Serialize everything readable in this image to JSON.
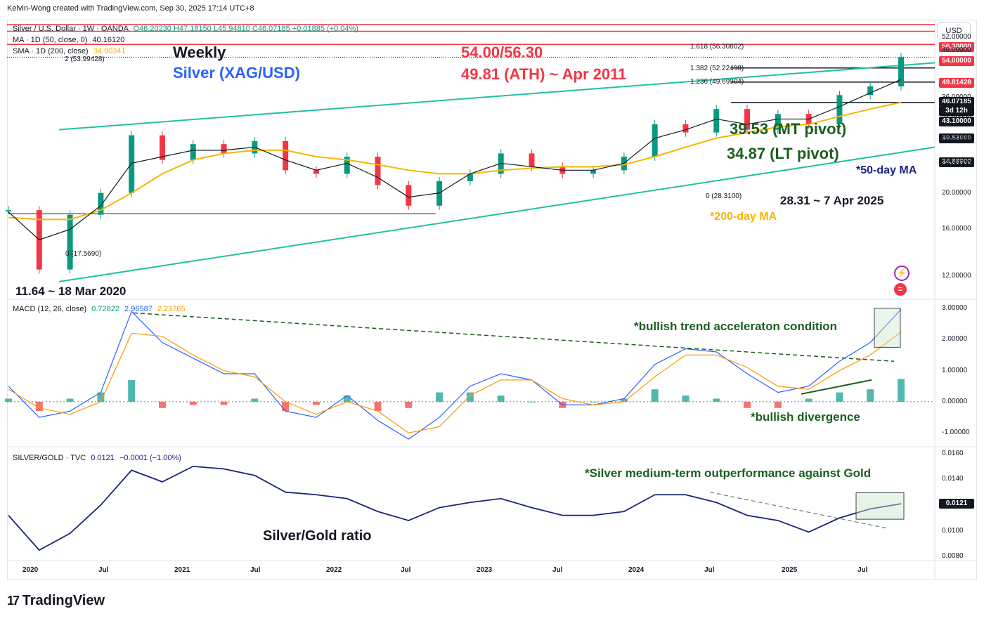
{
  "credit": "Kelvin-Wong created with TradingView.com, Sep 30, 2025 17:14 UTC+8",
  "currency_badge": "USD",
  "legend": {
    "symbol": "Silver / U.S. Dollar · 1W · OANDA",
    "ohlc": "O46.20230 H47.18150 L45.94810 C46.07185 +0.01885 (+0.04%)",
    "ma_label": "MA · 1D (50, close, 0)",
    "ma_value": "40.16120",
    "sma_label": "SMA · 1D (200, close)",
    "sma_value": "34.90341",
    "fib_2": "2 (53.99428)"
  },
  "annotations": {
    "weekly": "Weekly",
    "instrument": "Silver (XAG/USD)",
    "resistance": "54.00/56.30",
    "ath": "49.81 (ATH) ~ Apr 2011",
    "mt_pivot": "39.53 (MT pivot)",
    "lt_pivot": "34.87 (LT pivot)",
    "ma50": "*50-day MA",
    "ma200": "*200-day MA",
    "low_2025": "28.31 ~ 7 Apr 2025",
    "low_2020": "11.64 ~ 18 Mar 2020",
    "fib_0_low": "0 (17.5690)",
    "fib_0_2025": "0 (28.3100)",
    "fib_1618": "1.618 (56.30802)",
    "fib_1382": "1.382 (52.22498)",
    "fib_1236": "1.236 (49.69904)",
    "macd_accel": "*bullish trend acceleraton condition",
    "macd_div": "*bullish divergence",
    "ratio_note": "*Silver medium-term outperformance against Gold",
    "ratio_title": "Silver/Gold ratio"
  },
  "price_tags": [
    {
      "label": "56.30000",
      "color": "#f23645"
    },
    {
      "label": "54.00000",
      "color": "#f23645"
    },
    {
      "label": "49.81428",
      "color": "#f23645"
    },
    {
      "label": "46.07185",
      "color": "#131722"
    },
    {
      "label": "3d 12h",
      "color": "#131722"
    },
    {
      "label": "43.10000",
      "color": "#131722"
    },
    {
      "label": "39.53000",
      "color": "#131722"
    },
    {
      "label": "34.86900",
      "color": "#131722"
    }
  ],
  "price_axis": [
    "52.00000",
    "48.00000",
    "36.00000",
    "32.00000",
    "28.00000",
    "24.00000",
    "20.00000",
    "16.00000",
    "12.00000"
  ],
  "macd_legend": {
    "label": "MACD (12, 26, close)",
    "hist": "0.72822",
    "macd": "2.96587",
    "signal": "2.23765"
  },
  "macd_axis": [
    "3.00000",
    "2.00000",
    "1.00000",
    "0.00000",
    "-1.00000"
  ],
  "ratio_legend": {
    "label": "SILVER/GOLD · TVC",
    "value": "0.0121",
    "change": "−0.0001 (−1.00%)"
  },
  "ratio_axis": [
    "0.0160",
    "0.0140",
    "0.0121",
    "0.0100",
    "0.0080"
  ],
  "time_axis": [
    "2020",
    "Jul",
    "2021",
    "Jul",
    "2022",
    "Jul",
    "2023",
    "Jul",
    "2024",
    "Jul",
    "2025",
    "Jul"
  ],
  "brand": "TradingView",
  "colors": {
    "up": "#089981",
    "down": "#f23645",
    "ma50": "#131722",
    "ma200": "#f7b500",
    "channel": "#22c1a0",
    "macd": "#2962ff",
    "signal": "#ff9800",
    "annotation_green": "#1b5e20"
  },
  "chart_data": [
    {
      "type": "candlestick",
      "title": "Silver / U.S. Dollar · 1W · OANDA",
      "ylim": [
        10.5,
        58
      ],
      "x": [
        "2020-01",
        "2020-03",
        "2020-05",
        "2020-07",
        "2020-08",
        "2020-10",
        "2021-01",
        "2021-03",
        "2021-06",
        "2021-09",
        "2021-12",
        "2022-03",
        "2022-06",
        "2022-09",
        "2022-11",
        "2023-02",
        "2023-05",
        "2023-07",
        "2023-10",
        "2024-01",
        "2024-03",
        "2024-05",
        "2024-07",
        "2024-10",
        "2024-12",
        "2025-02",
        "2025-04",
        "2025-06",
        "2025-08",
        "2025-09"
      ],
      "close": [
        18.0,
        12.5,
        17.5,
        20.0,
        28.5,
        24.5,
        27.0,
        25.5,
        27.5,
        23.0,
        22.5,
        25.0,
        21.0,
        18.5,
        21.5,
        22.5,
        25.5,
        23.5,
        22.5,
        23.0,
        25.0,
        30.5,
        29.0,
        33.5,
        29.5,
        32.5,
        30.5,
        36.5,
        38.5,
        46.07
      ],
      "ma50": [
        17.8,
        15.0,
        16.0,
        18.5,
        24.0,
        25.0,
        26.0,
        26.0,
        26.5,
        24.5,
        23.0,
        24.0,
        22.0,
        19.5,
        20.0,
        22.5,
        24.0,
        23.5,
        23.0,
        23.0,
        24.0,
        28.0,
        29.5,
        31.5,
        30.5,
        31.5,
        31.5,
        34.0,
        37.0,
        40.16
      ],
      "sma200": [
        17.2,
        17.0,
        17.0,
        18.0,
        20.0,
        22.5,
        24.5,
        25.5,
        26.0,
        26.0,
        25.0,
        24.5,
        23.8,
        23.0,
        22.5,
        22.5,
        23.0,
        23.3,
        23.5,
        23.5,
        23.8,
        25.0,
        26.5,
        28.0,
        29.0,
        30.0,
        30.5,
        32.0,
        33.5,
        34.9
      ],
      "levels": [
        56.3,
        54.0,
        49.81428,
        43.1,
        39.53,
        34.869
      ]
    },
    {
      "type": "line",
      "title": "MACD (12, 26, close)",
      "ylim": [
        -1.4,
        3.2
      ],
      "x": [
        "2020-01",
        "2020-03",
        "2020-05",
        "2020-07",
        "2020-08",
        "2020-10",
        "2021-01",
        "2021-03",
        "2021-06",
        "2021-09",
        "2021-12",
        "2022-03",
        "2022-06",
        "2022-09",
        "2022-11",
        "2023-02",
        "2023-05",
        "2023-07",
        "2023-10",
        "2024-01",
        "2024-03",
        "2024-05",
        "2024-07",
        "2024-10",
        "2024-12",
        "2025-02",
        "2025-04",
        "2025-06",
        "2025-08",
        "2025-09"
      ],
      "series": [
        {
          "name": "MACD",
          "values": [
            0.5,
            -0.5,
            -0.3,
            0.3,
            2.9,
            1.9,
            1.4,
            0.9,
            0.9,
            -0.3,
            -0.5,
            0.2,
            -0.6,
            -1.2,
            -0.5,
            0.5,
            0.9,
            0.7,
            -0.1,
            -0.1,
            0.1,
            1.2,
            1.7,
            1.6,
            0.9,
            0.3,
            0.5,
            1.3,
            1.9,
            2.97
          ]
        },
        {
          "name": "Signal",
          "values": [
            0.4,
            -0.2,
            -0.4,
            0.0,
            2.2,
            2.1,
            1.5,
            1.0,
            0.8,
            0.0,
            -0.4,
            0.0,
            -0.3,
            -1.0,
            -0.8,
            0.2,
            0.7,
            0.7,
            0.1,
            -0.1,
            0.0,
            0.8,
            1.5,
            1.5,
            1.1,
            0.5,
            0.4,
            1.0,
            1.5,
            2.24
          ]
        },
        {
          "name": "Histogram",
          "values": [
            0.1,
            -0.3,
            0.1,
            0.3,
            0.7,
            -0.2,
            -0.1,
            -0.1,
            0.1,
            -0.3,
            -0.1,
            0.2,
            -0.3,
            -0.2,
            0.3,
            0.3,
            0.2,
            0.0,
            -0.2,
            0.0,
            0.1,
            0.4,
            0.2,
            0.1,
            -0.2,
            -0.2,
            0.1,
            0.3,
            0.4,
            0.73
          ]
        }
      ]
    },
    {
      "type": "line",
      "title": "SILVER/GOLD · TVC",
      "ylim": [
        0.0078,
        0.0163
      ],
      "x": [
        "2020-01",
        "2020-03",
        "2020-05",
        "2020-07",
        "2020-08",
        "2020-10",
        "2021-01",
        "2021-03",
        "2021-06",
        "2021-09",
        "2021-12",
        "2022-03",
        "2022-06",
        "2022-09",
        "2022-11",
        "2023-02",
        "2023-05",
        "2023-07",
        "2023-10",
        "2024-01",
        "2024-03",
        "2024-05",
        "2024-07",
        "2024-10",
        "2024-12",
        "2025-02",
        "2025-04",
        "2025-06",
        "2025-08",
        "2025-09"
      ],
      "series": [
        {
          "name": "SILVER/GOLD",
          "values": [
            0.0112,
            0.0085,
            0.0098,
            0.012,
            0.0147,
            0.0138,
            0.015,
            0.0148,
            0.0143,
            0.013,
            0.0128,
            0.0125,
            0.0115,
            0.0108,
            0.0118,
            0.0122,
            0.0125,
            0.0118,
            0.0112,
            0.0112,
            0.0115,
            0.0128,
            0.0128,
            0.0122,
            0.0112,
            0.0108,
            0.0099,
            0.011,
            0.0117,
            0.0121
          ]
        }
      ]
    }
  ]
}
